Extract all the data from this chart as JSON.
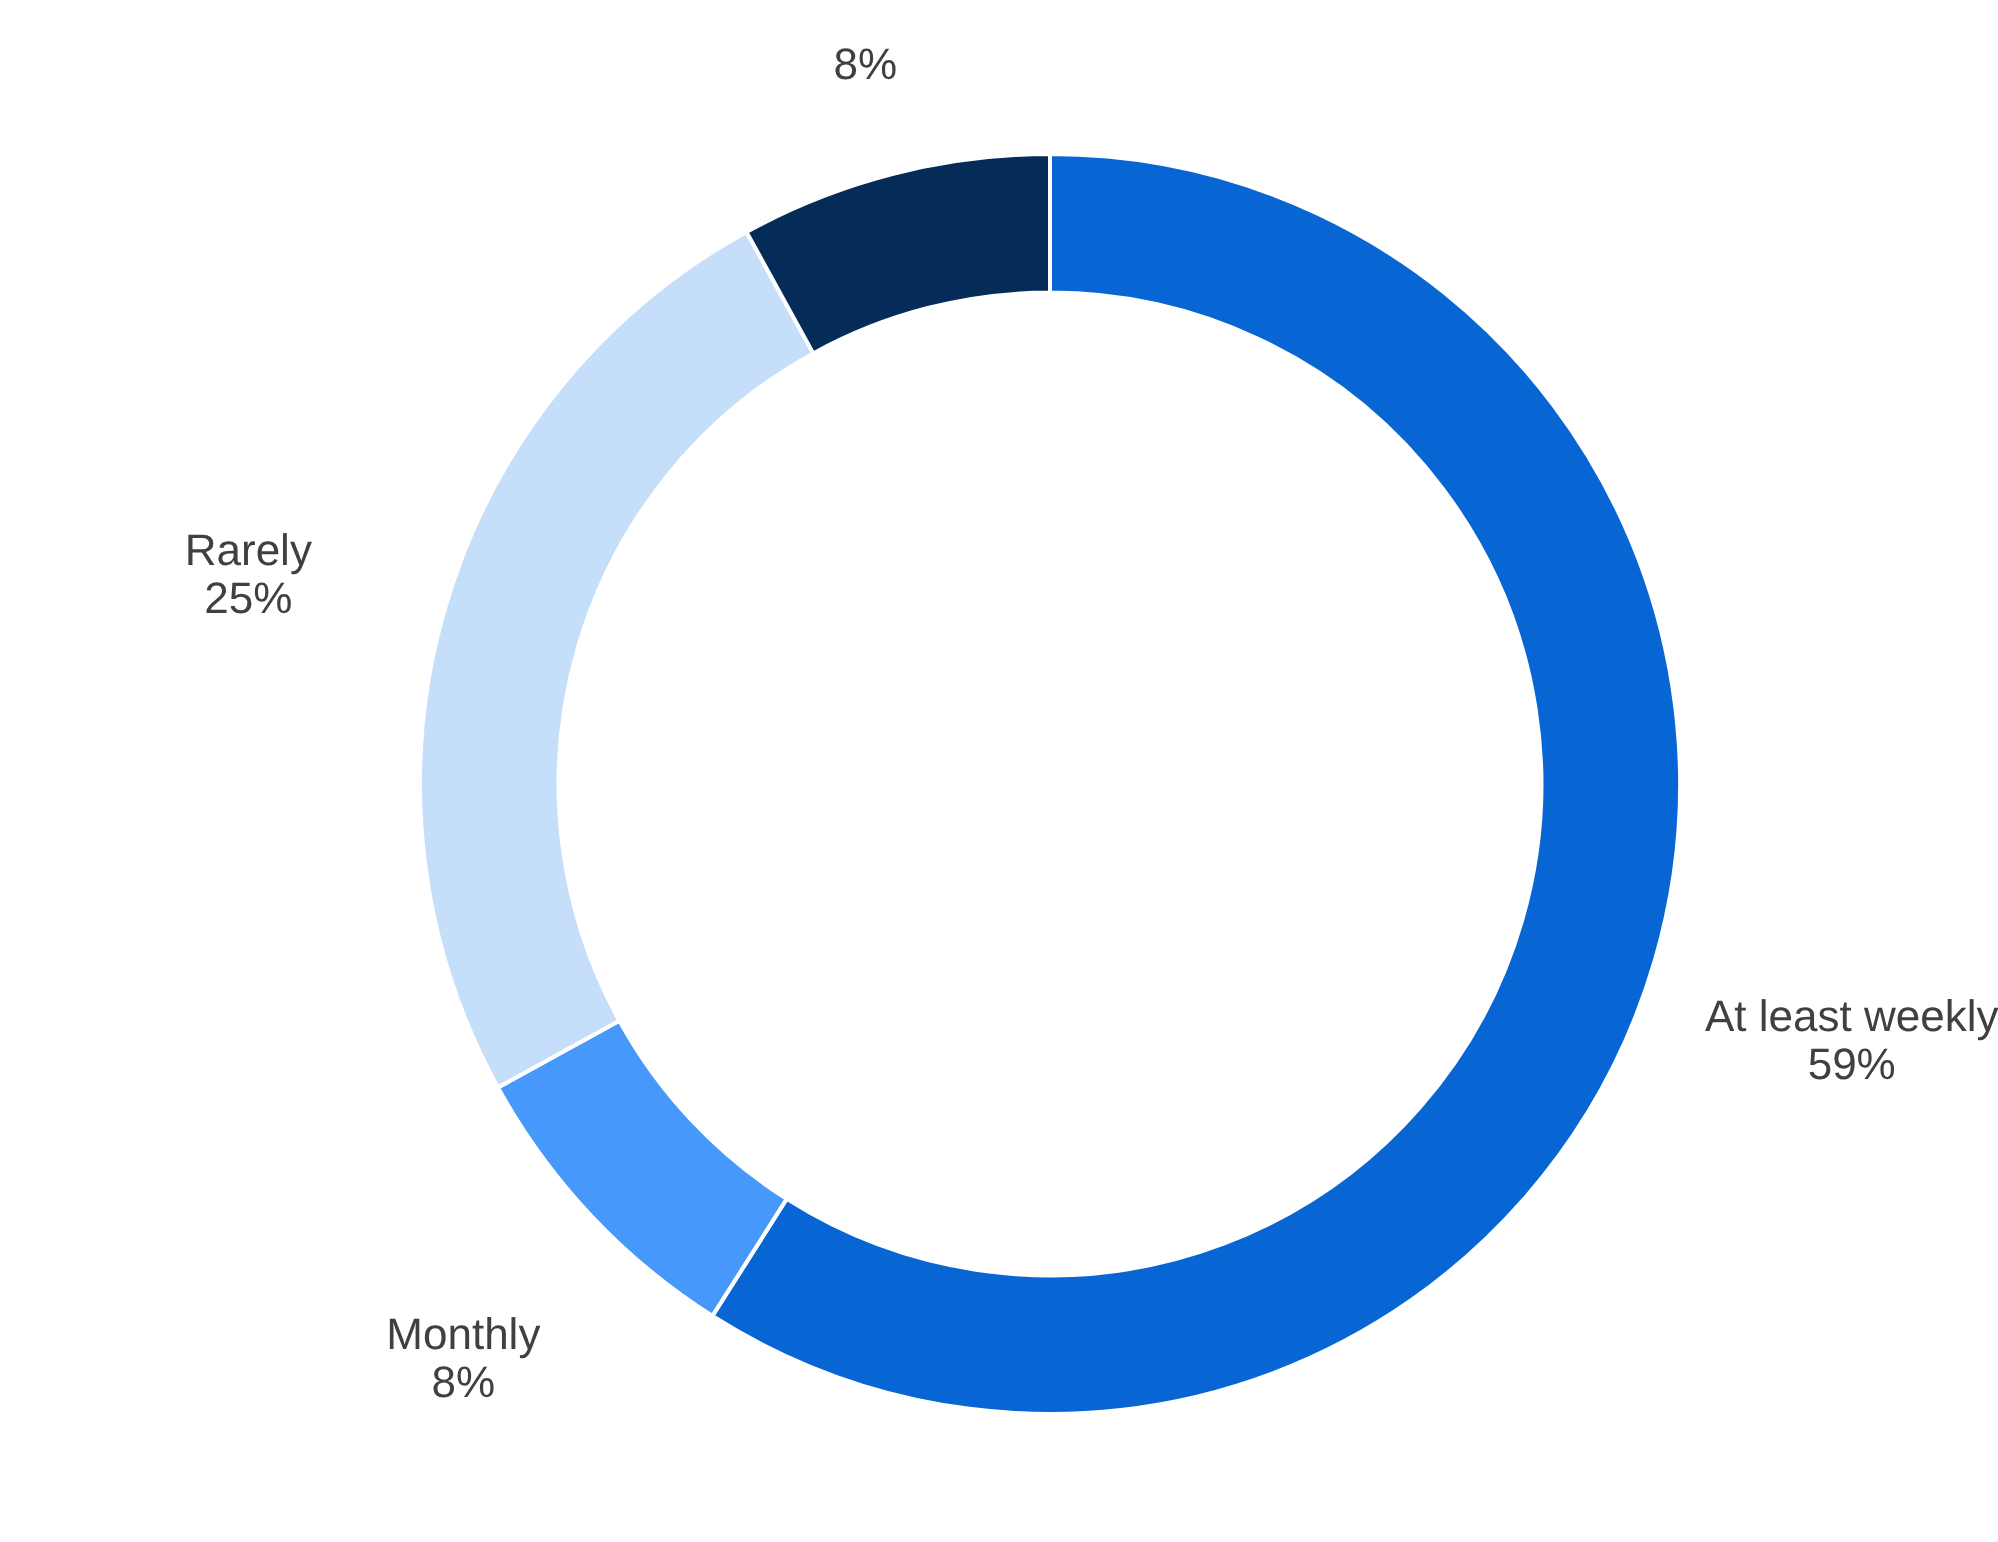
{
  "chart_data": {
    "type": "donut",
    "categories": [
      "At least weekly",
      "Monthly",
      "Rarely",
      null
    ],
    "values": [
      59,
      8,
      25,
      8
    ],
    "colors": [
      "#0866d4",
      "#4698fb",
      "#c5dffb",
      "#052b58"
    ],
    "value_labels": [
      "59%",
      "8%",
      "25%",
      "8%"
    ]
  }
}
